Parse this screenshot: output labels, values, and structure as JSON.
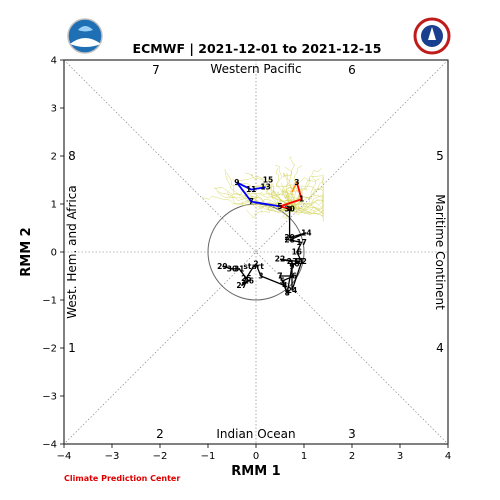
{
  "chart_data": {
    "type": "line",
    "title": "ECMWF | 2021-12-01 to 2021-12-15",
    "xlabel": "RMM 1",
    "ylabel": "RMM 2",
    "xlim": [
      -4,
      4
    ],
    "ylim": [
      -4,
      4
    ],
    "xticks": [
      "−4",
      "−3",
      "−2",
      "−1",
      "0",
      "1",
      "2",
      "3",
      "4"
    ],
    "yticks": [
      "−4",
      "−3",
      "−2",
      "−1",
      "0",
      "1",
      "2",
      "3",
      "4"
    ],
    "regions": {
      "top": "Western Pacific",
      "bottom": "Indian Ocean",
      "left": "West. Hem. and Africa",
      "right": "Maritime Continent"
    },
    "phases": [
      "1",
      "2",
      "3",
      "4",
      "5",
      "6",
      "7",
      "8"
    ],
    "credit": "Climate Prediction Center",
    "colors": {
      "observed": "#000000",
      "ensemble": "#d4d45a",
      "forecast_week1": "#ff0000",
      "forecast_week2": "#0000ff",
      "forecast_bridge": "#ff8c00",
      "credit": "#e00000"
    },
    "series": [
      {
        "points": [
          {
            "x": -0.7,
            "y": -0.3,
            "label": "29"
          },
          {
            "x": -0.5,
            "y": -0.35,
            "label": "30"
          },
          {
            "x": -0.35,
            "y": -0.35,
            "label": "31"
          },
          {
            "x": -0.2,
            "y": -0.55,
            "label": "25"
          },
          {
            "x": -0.15,
            "y": -0.6,
            "label": "26"
          },
          {
            "x": -0.3,
            "y": -0.7,
            "label": "27"
          },
          {
            "x": -0.05,
            "y": -0.3,
            "label": "start"
          },
          {
            "x": 0.0,
            "y": -0.25,
            "label": "2"
          },
          {
            "x": 0.1,
            "y": -0.5,
            "label": "3"
          },
          {
            "x": 0.6,
            "y": -0.7,
            "label": "4"
          },
          {
            "x": 0.55,
            "y": -0.6,
            "label": "5"
          },
          {
            "x": 0.8,
            "y": -0.5,
            "label": "6"
          },
          {
            "x": 0.5,
            "y": -0.5,
            "label": "7"
          },
          {
            "x": 0.65,
            "y": -0.85,
            "label": "8"
          },
          {
            "x": 0.75,
            "y": -0.3,
            "label": "9"
          },
          {
            "x": 0.8,
            "y": -0.25,
            "label": "10"
          },
          {
            "x": 0.9,
            "y": -0.2,
            "label": "11"
          },
          {
            "x": 0.5,
            "y": -0.15,
            "label": "22"
          },
          {
            "x": 0.75,
            "y": -0.2,
            "label": "23"
          },
          {
            "x": 0.75,
            "y": -0.8,
            "label": "24"
          },
          {
            "x": 0.95,
            "y": -0.2,
            "label": "12"
          },
          {
            "x": 0.85,
            "y": 0.0,
            "label": "16"
          },
          {
            "x": 0.95,
            "y": 0.2,
            "label": "17"
          },
          {
            "x": 0.7,
            "y": 0.25,
            "label": "28"
          },
          {
            "x": 1.05,
            "y": 0.4,
            "label": "14"
          },
          {
            "x": 0.7,
            "y": 0.3,
            "label": "29"
          },
          {
            "x": 0.7,
            "y": 0.9,
            "label": "30"
          }
        ]
      },
      {
        "points": [
          {
            "x": 0.5,
            "y": 0.95,
            "label": "5"
          },
          {
            "x": 0.95,
            "y": 1.1,
            "label": "1"
          },
          {
            "x": 0.85,
            "y": 1.45,
            "label": "3"
          }
        ]
      },
      {
        "points": [
          {
            "x": -0.4,
            "y": 1.45,
            "label": "9"
          },
          {
            "x": -0.1,
            "y": 1.3,
            "label": "11"
          },
          {
            "x": 0.2,
            "y": 1.35,
            "label": "13"
          },
          {
            "x": 0.25,
            "y": 1.5,
            "label": "15"
          },
          {
            "x": -0.1,
            "y": 1.05,
            "label": "7"
          }
        ]
      }
    ]
  }
}
